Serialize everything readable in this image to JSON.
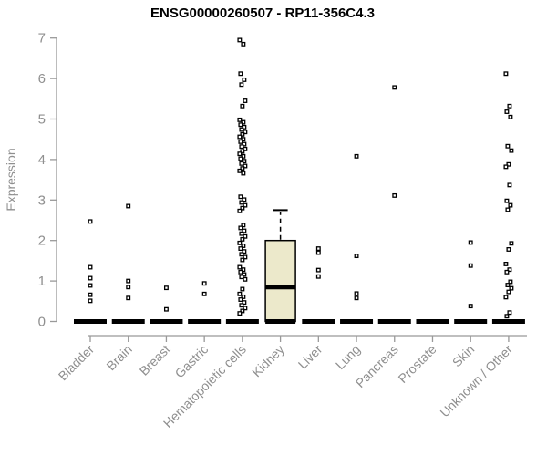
{
  "title": "ENSG00000260507 - RP11-356C4.3",
  "chart_data": {
    "type": "boxplot",
    "title": "ENSG00000260507 - RP11-356C4.3",
    "xlabel": "",
    "ylabel": "Expression",
    "ylim": [
      0,
      7
    ],
    "y_ticks": [
      0,
      1,
      2,
      3,
      4,
      5,
      6,
      7
    ],
    "grid": false,
    "legend": false,
    "point_marker": "open-square",
    "categories": [
      "Bladder",
      "Brain",
      "Breast",
      "Gastric",
      "Hematopoietic cells",
      "Kidney",
      "Liver",
      "Lung",
      "Pancreas",
      "Prostate",
      "Skin",
      "Unknown / Other"
    ],
    "series": [
      {
        "name": "Bladder",
        "median": 0,
        "points": [
          2.47,
          1.34,
          1.07,
          0.89,
          0.66,
          0.51
        ]
      },
      {
        "name": "Brain",
        "median": 0,
        "points": [
          2.85,
          1.0,
          0.85,
          0.58
        ]
      },
      {
        "name": "Breast",
        "median": 0,
        "points": [
          0.83,
          0.3
        ]
      },
      {
        "name": "Gastric",
        "median": 0,
        "points": [
          0.94,
          0.68
        ]
      },
      {
        "name": "Hematopoietic cells",
        "median": 0,
        "points": [
          6.95,
          6.85,
          6.12,
          5.97,
          5.85,
          5.45,
          5.32,
          4.98,
          4.92,
          4.86,
          4.8,
          4.74,
          4.68,
          4.62,
          4.56,
          4.5,
          4.44,
          4.38,
          4.32,
          4.26,
          4.2,
          4.14,
          4.08,
          4.02,
          3.96,
          3.9,
          3.84,
          3.78,
          3.72,
          3.66,
          3.08,
          3.01,
          2.94,
          2.87,
          2.8,
          2.73,
          2.38,
          2.31,
          2.24,
          2.17,
          2.1,
          2.03,
          1.94,
          1.87,
          1.8,
          1.73,
          1.66,
          1.59,
          1.52,
          1.34,
          1.28,
          1.22,
          1.16,
          1.1,
          1.04,
          0.8,
          0.68,
          0.61,
          0.54,
          0.47,
          0.4,
          0.33,
          0.26,
          0.2
        ]
      },
      {
        "name": "Kidney",
        "box": {
          "whisker_high": 2.75,
          "q3": 2.0,
          "median": 0.85,
          "q1": 0,
          "whisker_low": 0
        },
        "points": []
      },
      {
        "name": "Liver",
        "median": 0,
        "points": [
          1.8,
          1.7,
          1.27,
          1.11
        ]
      },
      {
        "name": "Lung",
        "median": 0,
        "points": [
          4.08,
          1.62,
          0.69,
          0.58
        ]
      },
      {
        "name": "Pancreas",
        "median": 0,
        "points": [
          5.78,
          3.11
        ]
      },
      {
        "name": "Prostate",
        "median": 0,
        "points": []
      },
      {
        "name": "Skin",
        "median": 0,
        "points": [
          1.95,
          1.38,
          0.38
        ]
      },
      {
        "name": "Unknown / Other",
        "median": 0,
        "points": [
          6.12,
          5.32,
          5.18,
          5.05,
          4.33,
          4.22,
          3.88,
          3.82,
          3.37,
          2.98,
          2.87,
          2.76,
          1.93,
          1.78,
          1.42,
          1.28,
          1.22,
          0.98,
          0.9,
          0.82,
          0.73,
          0.6,
          0.22,
          0.13
        ]
      }
    ],
    "colors": {
      "box_fill": "#ece9cb",
      "point": "#000000",
      "median_bar": "#000000",
      "axis": "#999999",
      "tick_text": "#8f8f8f",
      "title_text": "#000000",
      "background": "#ffffff"
    }
  }
}
